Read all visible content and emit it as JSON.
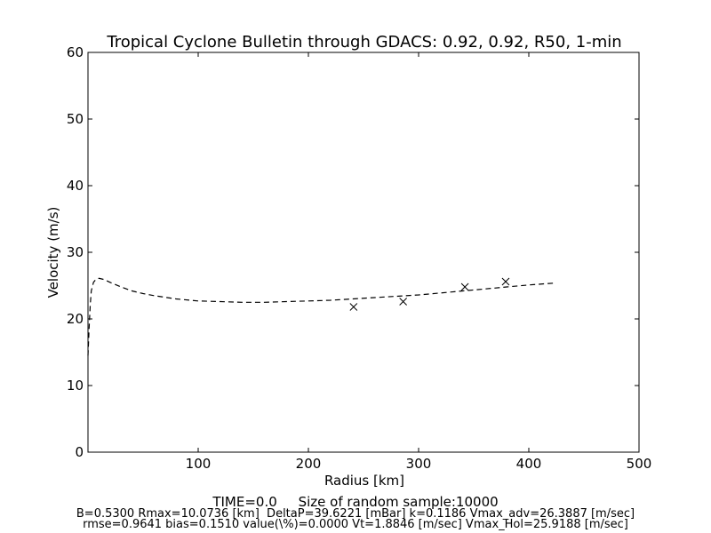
{
  "chart_data": {
    "type": "line",
    "title": "Tropical Cyclone Bulletin through GDACS: 0.92, 0.92, R50, 1-min",
    "xlabel": "Radius [km]",
    "ylabel": "Velocity (m/s)",
    "xlim": [
      0,
      500
    ],
    "ylim": [
      0,
      60
    ],
    "xticks": [
      100,
      200,
      300,
      400,
      500
    ],
    "yticks": [
      0,
      10,
      20,
      30,
      40,
      50,
      60
    ],
    "grid": false,
    "series": [
      {
        "style": "dashed-line",
        "x": [
          0,
          1,
          2,
          3,
          5,
          7,
          10,
          15,
          20,
          30,
          40,
          50,
          60,
          80,
          100,
          120,
          140,
          160,
          180,
          200,
          220,
          240,
          260,
          280,
          300,
          320,
          340,
          360,
          380,
          400,
          425
        ],
        "y": [
          14.5,
          18.5,
          22,
          24.2,
          25.5,
          25.9,
          26.1,
          25.9,
          25.5,
          24.8,
          24.2,
          23.8,
          23.5,
          23.0,
          22.7,
          22.6,
          22.5,
          22.5,
          22.6,
          22.7,
          22.8,
          23.0,
          23.2,
          23.4,
          23.6,
          23.9,
          24.2,
          24.5,
          24.8,
          25.1,
          25.4
        ]
      },
      {
        "style": "x-markers",
        "x": [
          241,
          286,
          342,
          379
        ],
        "y": [
          21.8,
          22.6,
          24.8,
          25.6
        ]
      }
    ],
    "footer": {
      "line1": "TIME=0.0     Size of random sample:10000",
      "line2": "B=0.5300 Rmax=10.0736 [km]  DeltaP=39.6221 [mBar] k=0.1186 Vmax_adv=26.3887 [m/sec]",
      "line3": "rmse=0.9641 bias=0.1510 value(\\%)=0.0000 Vt=1.8846 [m/sec] Vmax_Hol=25.9188 [m/sec]"
    }
  }
}
